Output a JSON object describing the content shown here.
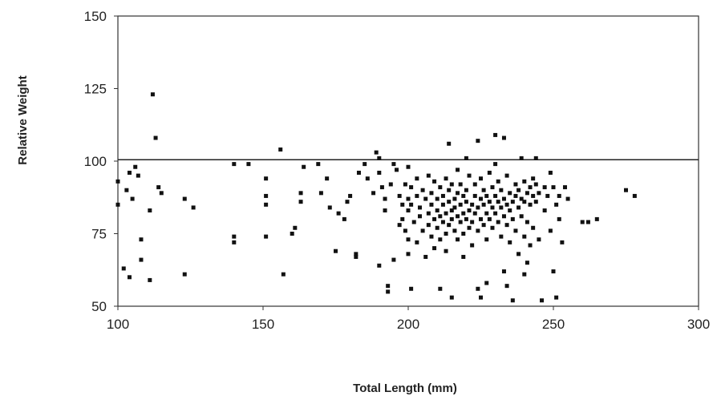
{
  "chart_data": {
    "type": "scatter",
    "title": "",
    "xlabel": "Total Length (mm)",
    "ylabel": "Relative Weight",
    "xlim": [
      100,
      300
    ],
    "ylim": [
      50,
      150
    ],
    "x_ticks": [
      "100",
      "150",
      "200",
      "250",
      "300"
    ],
    "y_ticks": [
      "50",
      "75",
      "100",
      "125",
      "150"
    ],
    "grid": false,
    "legend": "none",
    "reference_line": {
      "y": 100.5
    },
    "marker_color": "#111111",
    "series": [
      {
        "points": [
          [
            100,
            93
          ],
          [
            100,
            85
          ],
          [
            102,
            63
          ],
          [
            103,
            90
          ],
          [
            104,
            96
          ],
          [
            104,
            60
          ],
          [
            105,
            87
          ],
          [
            106,
            98
          ],
          [
            107,
            95
          ],
          [
            108,
            73
          ],
          [
            108,
            66
          ],
          [
            111,
            83
          ],
          [
            111,
            59
          ],
          [
            112,
            123
          ],
          [
            113,
            108
          ],
          [
            114,
            91
          ],
          [
            115,
            89
          ],
          [
            123,
            87
          ],
          [
            123,
            61
          ],
          [
            126,
            84
          ],
          [
            140,
            99
          ],
          [
            140,
            74
          ],
          [
            140,
            72
          ],
          [
            145,
            99
          ],
          [
            151,
            85
          ],
          [
            151,
            88
          ],
          [
            151,
            94
          ],
          [
            151,
            74
          ],
          [
            156,
            104
          ],
          [
            157,
            61
          ],
          [
            160,
            75
          ],
          [
            161,
            77
          ],
          [
            163,
            89
          ],
          [
            163,
            86
          ],
          [
            164,
            98
          ],
          [
            169,
            99
          ],
          [
            170,
            89
          ],
          [
            172,
            94
          ],
          [
            173,
            84
          ],
          [
            175,
            69
          ],
          [
            176,
            82
          ],
          [
            178,
            80
          ],
          [
            179,
            86
          ],
          [
            180,
            88
          ],
          [
            182,
            68
          ],
          [
            182,
            67
          ],
          [
            183,
            96
          ],
          [
            185,
            99
          ],
          [
            186,
            94
          ],
          [
            188,
            89
          ],
          [
            189,
            103
          ],
          [
            190,
            101
          ],
          [
            190,
            96
          ],
          [
            190,
            64
          ],
          [
            191,
            91
          ],
          [
            192,
            87
          ],
          [
            192,
            83
          ],
          [
            193,
            57
          ],
          [
            193,
            55
          ],
          [
            194,
            92
          ],
          [
            195,
            99
          ],
          [
            195,
            66
          ],
          [
            196,
            97
          ],
          [
            197,
            88
          ],
          [
            197,
            78
          ],
          [
            198,
            85
          ],
          [
            198,
            80
          ],
          [
            199,
            92
          ],
          [
            199,
            76
          ],
          [
            200,
            98
          ],
          [
            200,
            87
          ],
          [
            200,
            83
          ],
          [
            200,
            73
          ],
          [
            200,
            68
          ],
          [
            201,
            91
          ],
          [
            201,
            85
          ],
          [
            201,
            56
          ],
          [
            202,
            79
          ],
          [
            203,
            94
          ],
          [
            203,
            88
          ],
          [
            203,
            72
          ],
          [
            204,
            84
          ],
          [
            204,
            81
          ],
          [
            205,
            76
          ],
          [
            205,
            90
          ],
          [
            206,
            87
          ],
          [
            206,
            67
          ],
          [
            207,
            82
          ],
          [
            207,
            95
          ],
          [
            207,
            78
          ],
          [
            208,
            85
          ],
          [
            208,
            89
          ],
          [
            208,
            74
          ],
          [
            209,
            80
          ],
          [
            209,
            93
          ],
          [
            209,
            70
          ],
          [
            210,
            83
          ],
          [
            210,
            87
          ],
          [
            210,
            77
          ],
          [
            211,
            91
          ],
          [
            211,
            81
          ],
          [
            211,
            73
          ],
          [
            211,
            56
          ],
          [
            212,
            85
          ],
          [
            212,
            88
          ],
          [
            212,
            79
          ],
          [
            213,
            82
          ],
          [
            213,
            94
          ],
          [
            213,
            75
          ],
          [
            213,
            69
          ],
          [
            214,
            86
          ],
          [
            214,
            90
          ],
          [
            214,
            78
          ],
          [
            214,
            106
          ],
          [
            215,
            83
          ],
          [
            215,
            80
          ],
          [
            215,
            92
          ],
          [
            215,
            53
          ],
          [
            216,
            87
          ],
          [
            216,
            76
          ],
          [
            216,
            84
          ],
          [
            217,
            81
          ],
          [
            217,
            89
          ],
          [
            217,
            73
          ],
          [
            217,
            97
          ],
          [
            218,
            85
          ],
          [
            218,
            79
          ],
          [
            218,
            92
          ],
          [
            219,
            82
          ],
          [
            219,
            88
          ],
          [
            219,
            75
          ],
          [
            219,
            67
          ],
          [
            220,
            86
          ],
          [
            220,
            80
          ],
          [
            220,
            90
          ],
          [
            220,
            101
          ],
          [
            221,
            83
          ],
          [
            221,
            77
          ],
          [
            221,
            95
          ],
          [
            222,
            85
          ],
          [
            222,
            79
          ],
          [
            222,
            71
          ],
          [
            223,
            88
          ],
          [
            223,
            82
          ],
          [
            223,
            92
          ],
          [
            224,
            84
          ],
          [
            224,
            76
          ],
          [
            224,
            107
          ],
          [
            224,
            56
          ],
          [
            225,
            87
          ],
          [
            225,
            80
          ],
          [
            225,
            94
          ],
          [
            225,
            53
          ],
          [
            226,
            85
          ],
          [
            226,
            78
          ],
          [
            226,
            90
          ],
          [
            227,
            82
          ],
          [
            227,
            88
          ],
          [
            227,
            73
          ],
          [
            227,
            58
          ],
          [
            228,
            86
          ],
          [
            228,
            80
          ],
          [
            228,
            96
          ],
          [
            229,
            84
          ],
          [
            229,
            91
          ],
          [
            229,
            77
          ],
          [
            230,
            109
          ],
          [
            230,
            88
          ],
          [
            230,
            82
          ],
          [
            230,
            99
          ],
          [
            231,
            86
          ],
          [
            231,
            79
          ],
          [
            231,
            93
          ],
          [
            232,
            84
          ],
          [
            232,
            90
          ],
          [
            232,
            74
          ],
          [
            233,
            108
          ],
          [
            233,
            87
          ],
          [
            233,
            81
          ],
          [
            233,
            62
          ],
          [
            234,
            85
          ],
          [
            234,
            78
          ],
          [
            234,
            95
          ],
          [
            234,
            57
          ],
          [
            235,
            83
          ],
          [
            235,
            89
          ],
          [
            235,
            72
          ],
          [
            236,
            86
          ],
          [
            236,
            80
          ],
          [
            236,
            52
          ],
          [
            237,
            88
          ],
          [
            237,
            92
          ],
          [
            237,
            76
          ],
          [
            238,
            84
          ],
          [
            238,
            90
          ],
          [
            238,
            68
          ],
          [
            239,
            87
          ],
          [
            239,
            81
          ],
          [
            239,
            101
          ],
          [
            240,
            86
          ],
          [
            240,
            93
          ],
          [
            240,
            74
          ],
          [
            240,
            61
          ],
          [
            241,
            89
          ],
          [
            241,
            79
          ],
          [
            241,
            65
          ],
          [
            242,
            91
          ],
          [
            242,
            85
          ],
          [
            242,
            71
          ],
          [
            243,
            88
          ],
          [
            243,
            94
          ],
          [
            243,
            77
          ],
          [
            244,
            101
          ],
          [
            244,
            92
          ],
          [
            244,
            86
          ],
          [
            245,
            89
          ],
          [
            245,
            73
          ],
          [
            246,
            52
          ],
          [
            247,
            91
          ],
          [
            247,
            83
          ],
          [
            248,
            88
          ],
          [
            249,
            96
          ],
          [
            249,
            76
          ],
          [
            250,
            62
          ],
          [
            250,
            91
          ],
          [
            251,
            53
          ],
          [
            251,
            85
          ],
          [
            252,
            80
          ],
          [
            252,
            88
          ],
          [
            253,
            72
          ],
          [
            254,
            91
          ],
          [
            255,
            87
          ],
          [
            260,
            79
          ],
          [
            262,
            79
          ],
          [
            265,
            80
          ],
          [
            275,
            90
          ],
          [
            278,
            88
          ]
        ]
      }
    ]
  }
}
